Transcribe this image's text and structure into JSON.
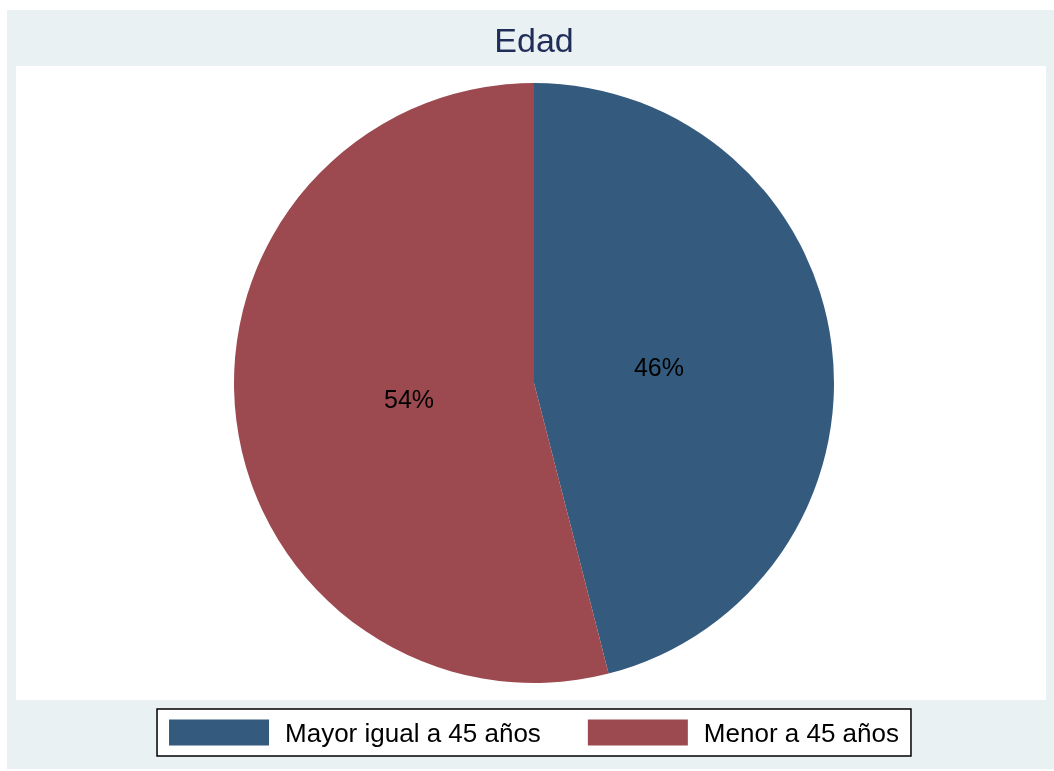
{
  "chart_data": {
    "type": "pie",
    "title": "Edad",
    "categories": [
      "Mayor igual a 45 años",
      "Menor a 45 años"
    ],
    "values": [
      46,
      54
    ],
    "value_labels": [
      "46%",
      "54%"
    ],
    "colors": [
      "#345a7e",
      "#9c4a50"
    ],
    "legend": "bottom"
  }
}
